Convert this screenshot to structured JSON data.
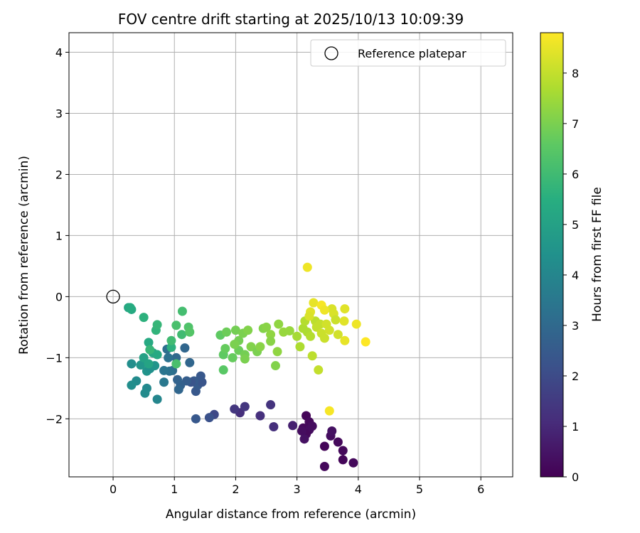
{
  "chart_data": {
    "type": "scatter",
    "title": "FOV centre drift starting at 2025/10/13 10:09:39",
    "xlabel": "Angular distance from reference (arcmin)",
    "ylabel": "Rotation from reference (arcmin)",
    "xlim": [
      -0.72,
      6.52
    ],
    "ylim": [
      -2.95,
      4.32
    ],
    "xticks": [
      0,
      1,
      2,
      3,
      4,
      5,
      6
    ],
    "yticks": [
      -2,
      -1,
      0,
      1,
      2,
      3,
      4
    ],
    "grid": true,
    "legend": {
      "position": "top-right",
      "entries": [
        "Reference platepar"
      ]
    },
    "reference_point": {
      "label": "Reference platepar",
      "x": 0,
      "y": 0
    },
    "colorbar": {
      "label": "Hours from first FF file",
      "min": 0,
      "max": 8.8,
      "ticks": [
        0,
        1,
        2,
        3,
        4,
        5,
        6,
        7,
        8
      ],
      "colormap": "viridis"
    },
    "points": [
      {
        "x": 3.15,
        "y": -1.95,
        "h": 0.1
      },
      {
        "x": 3.2,
        "y": -2.05,
        "h": 0.2
      },
      {
        "x": 3.1,
        "y": -2.15,
        "h": 0.2
      },
      {
        "x": 3.2,
        "y": -2.18,
        "h": 0.3
      },
      {
        "x": 3.15,
        "y": -2.25,
        "h": 0.2
      },
      {
        "x": 3.08,
        "y": -2.2,
        "h": 0.3
      },
      {
        "x": 3.25,
        "y": -2.12,
        "h": 0.3
      },
      {
        "x": 3.12,
        "y": -2.33,
        "h": 0.4
      },
      {
        "x": 3.45,
        "y": -2.45,
        "h": 0.1
      },
      {
        "x": 3.45,
        "y": -2.78,
        "h": 0.2
      },
      {
        "x": 3.55,
        "y": -2.28,
        "h": 0.3
      },
      {
        "x": 3.57,
        "y": -2.2,
        "h": 0.4
      },
      {
        "x": 3.67,
        "y": -2.38,
        "h": 0.2
      },
      {
        "x": 3.75,
        "y": -2.52,
        "h": 0.2
      },
      {
        "x": 3.75,
        "y": -2.67,
        "h": 0.1
      },
      {
        "x": 3.92,
        "y": -2.72,
        "h": 0.2
      },
      {
        "x": 2.93,
        "y": -2.11,
        "h": 0.8
      },
      {
        "x": 2.62,
        "y": -2.13,
        "h": 1.2
      },
      {
        "x": 2.57,
        "y": -1.77,
        "h": 1.3
      },
      {
        "x": 2.4,
        "y": -1.95,
        "h": 1.2
      },
      {
        "x": 2.07,
        "y": -1.9,
        "h": 1.2
      },
      {
        "x": 2.15,
        "y": -1.8,
        "h": 1.4
      },
      {
        "x": 1.98,
        "y": -1.84,
        "h": 1.4
      },
      {
        "x": 1.65,
        "y": -1.93,
        "h": 1.9
      },
      {
        "x": 1.57,
        "y": -1.98,
        "h": 2.2
      },
      {
        "x": 1.35,
        "y": -2.0,
        "h": 2.4
      },
      {
        "x": 1.35,
        "y": -1.55,
        "h": 2.4
      },
      {
        "x": 1.38,
        "y": -1.45,
        "h": 2.5
      },
      {
        "x": 1.45,
        "y": -1.4,
        "h": 2.3
      },
      {
        "x": 1.43,
        "y": -1.3,
        "h": 2.4
      },
      {
        "x": 1.32,
        "y": -1.38,
        "h": 2.5
      },
      {
        "x": 1.27,
        "y": -1.4,
        "h": 2.3
      },
      {
        "x": 1.2,
        "y": -1.38,
        "h": 2.6
      },
      {
        "x": 1.1,
        "y": -1.45,
        "h": 2.7
      },
      {
        "x": 1.07,
        "y": -1.52,
        "h": 2.9
      },
      {
        "x": 1.05,
        "y": -1.36,
        "h": 2.8
      },
      {
        "x": 1.25,
        "y": -1.08,
        "h": 2.9
      },
      {
        "x": 1.17,
        "y": -0.84,
        "h": 2.9
      },
      {
        "x": 1.03,
        "y": -1.0,
        "h": 3.0
      },
      {
        "x": 0.97,
        "y": -1.21,
        "h": 3.1
      },
      {
        "x": 0.92,
        "y": -1.22,
        "h": 3.3
      },
      {
        "x": 0.9,
        "y": -1.0,
        "h": 3.3
      },
      {
        "x": 0.88,
        "y": -0.86,
        "h": 3.2
      },
      {
        "x": 0.83,
        "y": -1.21,
        "h": 3.4
      },
      {
        "x": 0.83,
        "y": -1.4,
        "h": 3.5
      },
      {
        "x": 0.72,
        "y": -1.68,
        "h": 4.0
      },
      {
        "x": 0.55,
        "y": -1.5,
        "h": 4.1
      },
      {
        "x": 0.52,
        "y": -1.58,
        "h": 4.2
      },
      {
        "x": 0.38,
        "y": -1.38,
        "h": 4.2
      },
      {
        "x": 0.3,
        "y": -1.45,
        "h": 4.3
      },
      {
        "x": 0.3,
        "y": -1.1,
        "h": 4.3
      },
      {
        "x": 0.55,
        "y": -1.22,
        "h": 4.5
      },
      {
        "x": 0.6,
        "y": -1.18,
        "h": 4.4
      },
      {
        "x": 0.45,
        "y": -1.12,
        "h": 4.6
      },
      {
        "x": 0.68,
        "y": -1.13,
        "h": 4.5
      },
      {
        "x": 0.5,
        "y": -1.0,
        "h": 5.0
      },
      {
        "x": 0.58,
        "y": -1.1,
        "h": 5.1
      },
      {
        "x": 0.65,
        "y": -0.92,
        "h": 5.2
      },
      {
        "x": 0.72,
        "y": -0.95,
        "h": 5.3
      },
      {
        "x": 0.58,
        "y": -0.75,
        "h": 5.3
      },
      {
        "x": 0.25,
        "y": -0.18,
        "h": 5.2
      },
      {
        "x": 0.3,
        "y": -0.21,
        "h": 5.3
      },
      {
        "x": 0.28,
        "y": -0.18,
        "h": 5.4
      },
      {
        "x": 0.5,
        "y": -0.34,
        "h": 5.6
      },
      {
        "x": 0.7,
        "y": -0.55,
        "h": 5.7
      },
      {
        "x": 0.72,
        "y": -0.46,
        "h": 5.8
      },
      {
        "x": 0.6,
        "y": -0.87,
        "h": 5.8
      },
      {
        "x": 0.95,
        "y": -0.83,
        "h": 5.6
      },
      {
        "x": 0.95,
        "y": -0.72,
        "h": 6.0
      },
      {
        "x": 1.03,
        "y": -1.1,
        "h": 6.2
      },
      {
        "x": 1.12,
        "y": -0.62,
        "h": 6.0
      },
      {
        "x": 1.13,
        "y": -0.24,
        "h": 6.1
      },
      {
        "x": 1.03,
        "y": -0.47,
        "h": 6.2
      },
      {
        "x": 1.23,
        "y": -0.5,
        "h": 6.3
      },
      {
        "x": 1.25,
        "y": -0.58,
        "h": 6.4
      },
      {
        "x": 1.8,
        "y": -1.2,
        "h": 6.5
      },
      {
        "x": 1.75,
        "y": -0.63,
        "h": 6.6
      },
      {
        "x": 1.8,
        "y": -0.95,
        "h": 6.6
      },
      {
        "x": 1.83,
        "y": -0.85,
        "h": 6.7
      },
      {
        "x": 1.85,
        "y": -0.58,
        "h": 6.8
      },
      {
        "x": 1.95,
        "y": -1.0,
        "h": 6.7
      },
      {
        "x": 2.0,
        "y": -0.55,
        "h": 6.9
      },
      {
        "x": 2.05,
        "y": -0.88,
        "h": 6.8
      },
      {
        "x": 2.05,
        "y": -0.72,
        "h": 6.9
      },
      {
        "x": 1.98,
        "y": -0.78,
        "h": 7.0
      },
      {
        "x": 2.12,
        "y": -0.6,
        "h": 7.0
      },
      {
        "x": 2.15,
        "y": -0.95,
        "h": 6.9
      },
      {
        "x": 2.15,
        "y": -1.02,
        "h": 7.0
      },
      {
        "x": 2.2,
        "y": -0.55,
        "h": 7.1
      },
      {
        "x": 2.25,
        "y": -0.82,
        "h": 7.1
      },
      {
        "x": 2.35,
        "y": -0.9,
        "h": 7.0
      },
      {
        "x": 2.4,
        "y": -0.82,
        "h": 7.2
      },
      {
        "x": 2.45,
        "y": -0.52,
        "h": 7.1
      },
      {
        "x": 2.5,
        "y": -0.5,
        "h": 7.2
      },
      {
        "x": 2.57,
        "y": -0.62,
        "h": 7.3
      },
      {
        "x": 2.57,
        "y": -0.73,
        "h": 7.2
      },
      {
        "x": 2.65,
        "y": -1.13,
        "h": 7.1
      },
      {
        "x": 2.68,
        "y": -0.9,
        "h": 7.3
      },
      {
        "x": 2.7,
        "y": -0.45,
        "h": 7.3
      },
      {
        "x": 2.78,
        "y": -0.58,
        "h": 7.4
      },
      {
        "x": 2.88,
        "y": -0.56,
        "h": 7.4
      },
      {
        "x": 3.0,
        "y": -0.65,
        "h": 7.6
      },
      {
        "x": 3.05,
        "y": -0.82,
        "h": 7.7
      },
      {
        "x": 3.1,
        "y": -0.52,
        "h": 7.7
      },
      {
        "x": 3.13,
        "y": -0.4,
        "h": 7.8
      },
      {
        "x": 3.17,
        "y": -0.58,
        "h": 7.7
      },
      {
        "x": 3.22,
        "y": -0.65,
        "h": 7.8
      },
      {
        "x": 3.25,
        "y": -0.97,
        "h": 7.9
      },
      {
        "x": 3.3,
        "y": -0.4,
        "h": 7.9
      },
      {
        "x": 3.32,
        "y": -0.5,
        "h": 8.0
      },
      {
        "x": 3.35,
        "y": -1.2,
        "h": 8.0
      },
      {
        "x": 3.38,
        "y": -0.45,
        "h": 8.0
      },
      {
        "x": 3.4,
        "y": -0.6,
        "h": 8.1
      },
      {
        "x": 3.45,
        "y": -0.68,
        "h": 8.1
      },
      {
        "x": 3.48,
        "y": -0.45,
        "h": 8.2
      },
      {
        "x": 3.53,
        "y": -0.55,
        "h": 8.2
      },
      {
        "x": 3.57,
        "y": -0.2,
        "h": 8.3
      },
      {
        "x": 3.6,
        "y": -0.28,
        "h": 8.3
      },
      {
        "x": 3.63,
        "y": -0.38,
        "h": 8.1
      },
      {
        "x": 3.67,
        "y": -0.62,
        "h": 8.2
      },
      {
        "x": 3.77,
        "y": -0.4,
        "h": 8.4
      },
      {
        "x": 3.78,
        "y": -0.2,
        "h": 8.4
      },
      {
        "x": 3.78,
        "y": -0.72,
        "h": 8.5
      },
      {
        "x": 3.97,
        "y": -0.45,
        "h": 8.6
      },
      {
        "x": 4.12,
        "y": -0.74,
        "h": 8.8
      },
      {
        "x": 3.22,
        "y": -0.25,
        "h": 8.4
      },
      {
        "x": 3.27,
        "y": -0.1,
        "h": 8.5
      },
      {
        "x": 3.17,
        "y": 0.48,
        "h": 8.6
      },
      {
        "x": 3.4,
        "y": -0.14,
        "h": 8.7
      },
      {
        "x": 3.45,
        "y": -0.22,
        "h": 8.6
      },
      {
        "x": 3.53,
        "y": -1.87,
        "h": 8.7
      },
      {
        "x": 3.2,
        "y": -0.32,
        "h": 8.3
      }
    ]
  }
}
